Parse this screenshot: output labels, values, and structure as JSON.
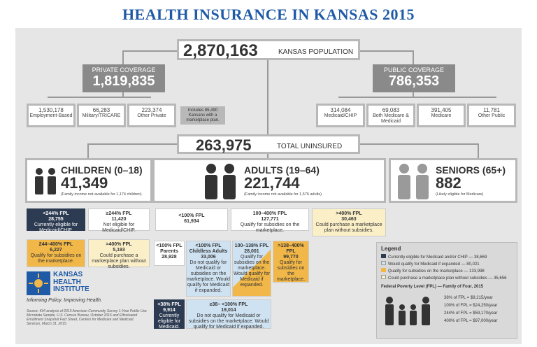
{
  "title": "HEALTH INSURANCE IN KANSAS 2015",
  "population": {
    "value": "2,870,163",
    "label": "KANSAS POPULATION"
  },
  "private": {
    "label": "PRIVATE COVERAGE",
    "value": "1,819,835",
    "items": [
      {
        "value": "1,530,178",
        "label": "Employment-Based"
      },
      {
        "value": "66,283",
        "label": "Military/TRICARE"
      },
      {
        "value": "223,374",
        "label": "Other Private"
      }
    ],
    "note": "Includes 85,490 Kansans with a marketplace plan."
  },
  "public": {
    "label": "PUBLIC COVERAGE",
    "value": "786,353",
    "items": [
      {
        "value": "314,084",
        "label": "Medicaid/CHIP"
      },
      {
        "value": "69,083",
        "label": "Both Medicare & Medicaid"
      },
      {
        "value": "391,405",
        "label": "Medicare"
      },
      {
        "value": "11,781",
        "label": "Other Public"
      }
    ]
  },
  "uninsured": {
    "value": "263,975",
    "label": "TOTAL UNINSURED"
  },
  "children": {
    "label": "CHILDREN (0–18)",
    "value": "41,349",
    "note": "(Family income not available for 1,174 children)"
  },
  "adults": {
    "label": "ADULTS (19–64)",
    "value": "221,744",
    "note": "(Family income not available for 1,576 adults)"
  },
  "seniors": {
    "label": "SENIORS (65+)",
    "value": "882",
    "note": "(Likely eligible for Medicare)"
  },
  "cells": {
    "c1": {
      "head": "<244% FPL",
      "num": "28,755",
      "text": "Currently eligible for Medicaid/CHIP."
    },
    "c2": {
      "head": "≥244% FPL",
      "num": "11,420",
      "text": "Not eligible for Medicaid/CHIP."
    },
    "c3": {
      "head": "244–400% FPL",
      "num": "6,227",
      "text": "Qualify for subsidies on the marketplace."
    },
    "c4": {
      "head": ">400% FPL",
      "num": "5,193",
      "text": "Could purchase a marketplace plan without subsidies."
    },
    "a1": {
      "head": "<100% FPL",
      "num": "61,934"
    },
    "a2": {
      "head": "100–400% FPL",
      "num": "127,771",
      "text": "Qualify for subsidies on the marketplace."
    },
    "a3": {
      "head": ">400% FPL",
      "num": "30,463",
      "text": "Could purchase a marketplace plan without subsidies."
    },
    "p1": {
      "head": "<100% FPL Parents",
      "num": "28,928"
    },
    "p2": {
      "head": "<100% FPL Childless Adults",
      "num": "33,006",
      "text": "Do not qualify for Medicaid or subsidies on the marketplace. Would qualify for Medicaid if expanded."
    },
    "p3": {
      "head": "100–138% FPL",
      "num": "28,001",
      "text": "Qualify for subsidies on the marketplace. Would qualify for Medicaid if expanded."
    },
    "p4": {
      "head": ">138–400% FPL",
      "num": "99,770",
      "text": "Qualify for subsidies on the marketplace."
    },
    "q1": {
      "head": "<38% FPL",
      "num": "9,914",
      "text": "Currently eligible for Medicaid."
    },
    "q2": {
      "head": "≥38– <100% FPL",
      "num": "19,014",
      "text": "Do not qualify for Medicaid or subsidies on the marketplace. Would qualify for Medicaid if expanded."
    }
  },
  "logo": {
    "line1": "KANSAS",
    "line2": "HEALTH",
    "line3": "INSTITUTE",
    "tagline": "Informing Policy. Improving Health."
  },
  "source": "Source: KHI analysis of 2015 American Community Survey 1-Year Public Use Microdata Sample, U.S. Census Bureau, October 2016 and Effectuated Enrollment Snapshot Fact Sheet, Centers for Medicare and Medicaid Services, March 31, 2015.",
  "legend": {
    "title": "Legend",
    "items": [
      {
        "text": "Currently eligible for Medicaid and/or CHIP — 38,669",
        "color": "#2d3b52"
      },
      {
        "text": "Would qualify for Medicaid if expanded — 80,021",
        "color": "#cfe2f2"
      },
      {
        "text": "Qualify for subsidies on the marketplace — 133,998",
        "color": "#f1b748"
      },
      {
        "text": "Could purchase a marketplace plan without subsidies — 35,656",
        "color": "#fbefc8"
      }
    ],
    "fpl_title": "Federal Poverty Level (FPL) — Family of Four, 2015",
    "fpl": [
      "38% of FPL   =  $9,215/year",
      "100% of FPL  =  $24,250/year",
      "244% of FPL  =  $59,170/year",
      "400% of FPL  =  $97,000/year"
    ]
  }
}
